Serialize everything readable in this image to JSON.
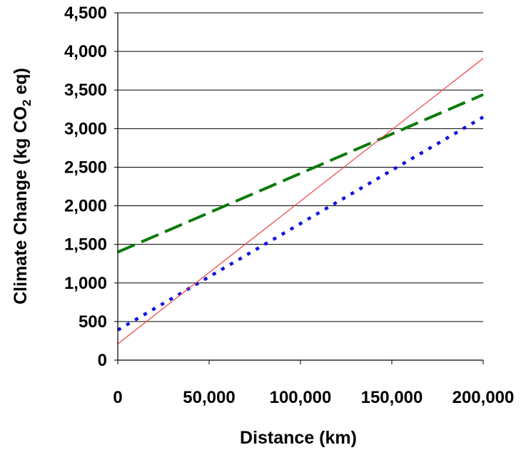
{
  "chart_data": {
    "type": "line",
    "title": "",
    "xlabel": "Distance (km)",
    "ylabel": {
      "main": "Climate Change (kg CO",
      "subscript": "2",
      "suffix": " eq)"
    },
    "xlim": [
      0,
      200000
    ],
    "ylim": [
      0,
      4500
    ],
    "grid": "horizontal",
    "legend": "none",
    "x_ticks": [
      "0",
      "50,000",
      "100,000",
      "150,000",
      "200,000"
    ],
    "y_ticks": [
      "0",
      "500",
      "1,000",
      "1,500",
      "2,000",
      "2,500",
      "3,000",
      "3,500",
      "4,000",
      "4,500"
    ],
    "series": [
      {
        "color": "#1010e0",
        "style": "dotted",
        "x": [
          0,
          200000
        ],
        "y": [
          390,
          3150
        ]
      },
      {
        "color": "#0a7a0a",
        "style": "dashed",
        "x": [
          0,
          200000
        ],
        "y": [
          1400,
          3440
        ]
      },
      {
        "color": "#ee4444",
        "style": "solid",
        "x": [
          0,
          200000
        ],
        "y": [
          210,
          3910
        ]
      }
    ]
  }
}
